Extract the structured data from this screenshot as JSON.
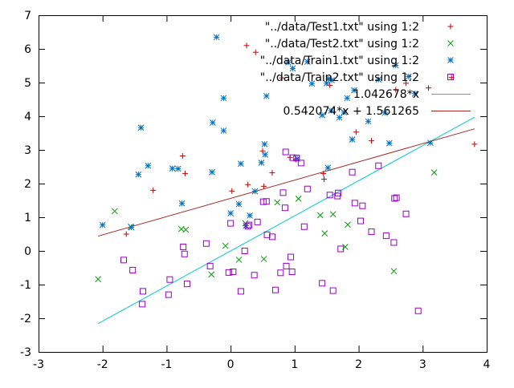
{
  "chart_data": {
    "type": "scatter",
    "title": "",
    "xlabel": "",
    "ylabel": "",
    "xlim": [
      -3,
      4
    ],
    "ylim": [
      -3,
      7
    ],
    "grid": false,
    "legend_position": "top-right",
    "x_ticks": [
      "-3",
      "-2",
      "-1",
      "0",
      "1",
      "2",
      "3",
      "4"
    ],
    "y_ticks": [
      "-3",
      "-2",
      "-1",
      "0",
      "1",
      "2",
      "3",
      "4",
      "5",
      "6",
      "7"
    ],
    "series": [
      {
        "name": "\"../data/Test1.txt\" using 1:2",
        "marker": "plus",
        "color": "#cc0000",
        "points": [
          [
            -1.63,
            0.5
          ],
          [
            -1.21,
            1.8
          ],
          [
            -0.71,
            2.3
          ],
          [
            -0.75,
            2.82
          ],
          [
            0.02,
            1.78
          ],
          [
            0.27,
            1.97
          ],
          [
            0.25,
            6.1
          ],
          [
            0.39,
            5.9
          ],
          [
            0.5,
            2.97
          ],
          [
            0.65,
            2.32
          ],
          [
            0.52,
            1.92
          ],
          [
            0.8,
            5.14
          ],
          [
            0.93,
            2.78
          ],
          [
            1.02,
            2.72
          ],
          [
            1.45,
            2.3
          ],
          [
            1.46,
            2.13
          ],
          [
            1.55,
            4.92
          ],
          [
            1.96,
            3.53
          ],
          [
            2.2,
            3.27
          ],
          [
            2.58,
            4.79
          ],
          [
            2.74,
            4.98
          ],
          [
            3.09,
            4.84
          ],
          [
            3.45,
            5.15
          ],
          [
            3.81,
            3.17
          ]
        ]
      },
      {
        "name": "\"../data/Test2.txt\" using 1:2",
        "marker": "cross",
        "color": "#00a000",
        "points": [
          [
            -2.07,
            -0.84
          ],
          [
            -1.81,
            1.18
          ],
          [
            -1.56,
            0.72
          ],
          [
            -0.77,
            0.65
          ],
          [
            -0.7,
            0.63
          ],
          [
            -0.3,
            -0.7
          ],
          [
            -0.08,
            0.15
          ],
          [
            0.13,
            -0.26
          ],
          [
            0.23,
            0.82
          ],
          [
            0.52,
            -0.24
          ],
          [
            0.73,
            1.44
          ],
          [
            1.06,
            1.55
          ],
          [
            1.4,
            1.06
          ],
          [
            1.47,
            0.52
          ],
          [
            1.6,
            1.09
          ],
          [
            1.79,
            0.12
          ],
          [
            1.83,
            0.78
          ],
          [
            2.55,
            -0.6
          ],
          [
            3.18,
            2.33
          ]
        ]
      },
      {
        "name": "\"../data/Train1.txt\" using 1:2",
        "marker": "star",
        "color": "#0070c0",
        "points": [
          [
            -2.0,
            0.77
          ],
          [
            -1.55,
            0.7
          ],
          [
            -1.44,
            2.27
          ],
          [
            -1.4,
            3.66
          ],
          [
            -1.29,
            2.53
          ],
          [
            -0.91,
            2.45
          ],
          [
            -0.82,
            2.44
          ],
          [
            -0.76,
            1.41
          ],
          [
            -0.28,
            3.81
          ],
          [
            -0.29,
            2.34
          ],
          [
            -0.22,
            6.35
          ],
          [
            -0.11,
            4.54
          ],
          [
            -0.11,
            3.57
          ],
          [
            0.0,
            1.12
          ],
          [
            0.13,
            1.39
          ],
          [
            0.16,
            2.59
          ],
          [
            0.24,
            0.75
          ],
          [
            0.3,
            1.05
          ],
          [
            0.38,
            1.77
          ],
          [
            0.48,
            2.62
          ],
          [
            0.53,
            3.17
          ],
          [
            0.54,
            2.86
          ],
          [
            0.56,
            4.6
          ],
          [
            0.9,
            5.6
          ],
          [
            0.97,
            5.42
          ],
          [
            1.04,
            2.74
          ],
          [
            1.2,
            5.62
          ],
          [
            1.27,
            4.97
          ],
          [
            1.43,
            4.03
          ],
          [
            1.5,
            4.98
          ],
          [
            1.53,
            5.11
          ],
          [
            1.57,
            4.17
          ],
          [
            1.58,
            5.07
          ],
          [
            1.52,
            2.47
          ],
          [
            1.7,
            3.96
          ],
          [
            1.77,
            4.12
          ],
          [
            1.82,
            4.54
          ],
          [
            1.9,
            3.31
          ],
          [
            1.93,
            4.77
          ],
          [
            2.15,
            3.85
          ],
          [
            2.31,
            5.09
          ],
          [
            2.41,
            4.1
          ],
          [
            2.48,
            3.2
          ],
          [
            2.58,
            5.51
          ],
          [
            2.78,
            5.18
          ],
          [
            2.88,
            4.67
          ],
          [
            3.12,
            3.21
          ]
        ]
      },
      {
        "name": "\"../data/Train2.txt\" using 1:2",
        "marker": "square",
        "color": "#9900cc",
        "points": [
          [
            -1.67,
            -0.27
          ],
          [
            -1.53,
            -0.57
          ],
          [
            -1.37,
            -1.2
          ],
          [
            -1.38,
            -1.58
          ],
          [
            -0.97,
            -1.3
          ],
          [
            -0.95,
            -0.85
          ],
          [
            -0.74,
            0.12
          ],
          [
            -0.72,
            -0.09
          ],
          [
            -0.68,
            -0.98
          ],
          [
            -0.38,
            0.22
          ],
          [
            -0.32,
            -0.45
          ],
          [
            -0.03,
            -0.64
          ],
          [
            0.0,
            0.82
          ],
          [
            0.04,
            -0.62
          ],
          [
            0.16,
            -1.2
          ],
          [
            0.22,
            0.0
          ],
          [
            0.27,
            0.73
          ],
          [
            0.29,
            0.77
          ],
          [
            0.37,
            -0.72
          ],
          [
            0.42,
            0.86
          ],
          [
            0.51,
            1.46
          ],
          [
            0.56,
            1.47
          ],
          [
            0.57,
            0.48
          ],
          [
            0.65,
            0.42
          ],
          [
            0.7,
            -1.16
          ],
          [
            0.78,
            -0.65
          ],
          [
            0.82,
            1.73
          ],
          [
            0.85,
            1.28
          ],
          [
            0.86,
            2.94
          ],
          [
            0.87,
            -0.45
          ],
          [
            0.94,
            -0.18
          ],
          [
            0.96,
            -0.62
          ],
          [
            0.97,
            2.77
          ],
          [
            1.03,
            2.76
          ],
          [
            1.1,
            2.61
          ],
          [
            1.15,
            0.72
          ],
          [
            1.2,
            1.84
          ],
          [
            1.43,
            -0.96
          ],
          [
            1.55,
            1.66
          ],
          [
            1.6,
            -1.18
          ],
          [
            1.67,
            1.63
          ],
          [
            1.68,
            1.72
          ],
          [
            1.72,
            0.06
          ],
          [
            1.9,
            2.34
          ],
          [
            1.94,
            1.42
          ],
          [
            2.03,
            0.89
          ],
          [
            2.06,
            1.34
          ],
          [
            2.2,
            0.57
          ],
          [
            2.31,
            2.53
          ],
          [
            2.43,
            0.45
          ],
          [
            2.55,
            0.25
          ],
          [
            2.56,
            1.56
          ],
          [
            2.59,
            1.58
          ],
          [
            2.74,
            1.1
          ],
          [
            2.93,
            -1.78
          ]
        ]
      },
      {
        "name": "1.042678*x",
        "type": "line",
        "color": "#00cccc",
        "slope": 1.042678,
        "intercept": 0,
        "x_range": [
          -2.07,
          3.81
        ]
      },
      {
        "name": "0.542074*x + 1.561265",
        "type": "line",
        "color": "#a52a2a",
        "slope": 0.542074,
        "intercept": 1.561265,
        "x_range": [
          -2.07,
          3.81
        ]
      }
    ]
  }
}
